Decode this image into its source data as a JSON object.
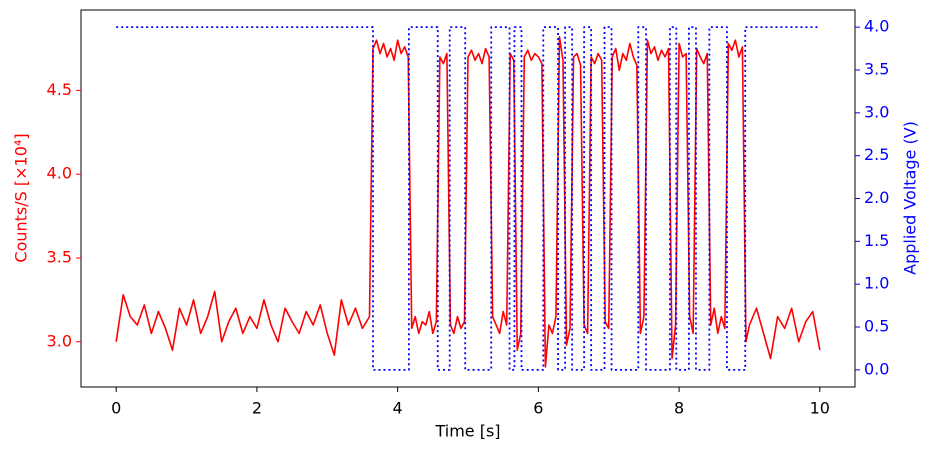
{
  "chart_data": {
    "type": "line",
    "xlabel": "Time [s]",
    "ylabel": "Counts/S [×10⁴]",
    "y2label": "Applied Voltage (V)",
    "xlim": [
      -0.5,
      10.5
    ],
    "xticks": [
      0,
      2,
      4,
      6,
      8,
      10
    ],
    "ylim": [
      2.73,
      4.98
    ],
    "yticks": [
      {
        "value": 3,
        "label": "3.0"
      },
      3.5,
      {
        "value": 4,
        "label": "4.0"
      },
      4.5
    ],
    "y2lim": [
      -0.2,
      4.2
    ],
    "y2ticks": [
      {
        "value": 0,
        "label": "0.0"
      },
      0.5,
      {
        "value": 1,
        "label": "1.0"
      },
      1.5,
      {
        "value": 2,
        "label": "2.0"
      },
      2.5,
      {
        "value": 3,
        "label": "3.0"
      },
      3.5,
      {
        "value": 4,
        "label": "4.0"
      }
    ],
    "ycolor": "#ff0000",
    "y2color": "#0000ff",
    "series": [
      {
        "color": "#ff0000",
        "axis": "y",
        "linestyle": "solid",
        "x": [
          0,
          0.1,
          0.2,
          0.3,
          0.4,
          0.5,
          0.6,
          0.7,
          0.8,
          0.9,
          1.0,
          1.1,
          1.2,
          1.3,
          1.4,
          1.5,
          1.6,
          1.7,
          1.8,
          1.9,
          2.0,
          2.1,
          2.2,
          2.3,
          2.4,
          2.5,
          2.6,
          2.7,
          2.8,
          2.9,
          3.0,
          3.1,
          3.2,
          3.3,
          3.4,
          3.5,
          3.6,
          3.65,
          3.7,
          3.75,
          3.8,
          3.85,
          3.9,
          3.95,
          4.0,
          4.05,
          4.1,
          4.15,
          4.2,
          4.25,
          4.3,
          4.35,
          4.4,
          4.45,
          4.5,
          4.55,
          4.6,
          4.65,
          4.7,
          4.75,
          4.8,
          4.85,
          4.9,
          4.95,
          5.0,
          5.05,
          5.1,
          5.15,
          5.2,
          5.25,
          5.3,
          5.35,
          5.4,
          5.45,
          5.5,
          5.55,
          5.6,
          5.65,
          5.7,
          5.75,
          5.8,
          5.85,
          5.9,
          5.95,
          6.0,
          6.05,
          6.1,
          6.15,
          6.2,
          6.25,
          6.3,
          6.35,
          6.4,
          6.45,
          6.5,
          6.55,
          6.6,
          6.65,
          6.7,
          6.75,
          6.8,
          6.85,
          6.9,
          6.95,
          7.0,
          7.05,
          7.1,
          7.15,
          7.2,
          7.25,
          7.3,
          7.35,
          7.4,
          7.45,
          7.5,
          7.55,
          7.6,
          7.65,
          7.7,
          7.75,
          7.8,
          7.85,
          7.9,
          7.95,
          8.0,
          8.05,
          8.1,
          8.15,
          8.2,
          8.25,
          8.3,
          8.35,
          8.4,
          8.45,
          8.5,
          8.55,
          8.6,
          8.65,
          8.7,
          8.75,
          8.8,
          8.85,
          8.9,
          8.95,
          9.0,
          9.1,
          9.2,
          9.3,
          9.4,
          9.5,
          9.6,
          9.7,
          9.8,
          9.9,
          10.0
        ],
        "values": [
          3.0,
          3.28,
          3.15,
          3.1,
          3.22,
          3.05,
          3.18,
          3.08,
          2.95,
          3.2,
          3.1,
          3.25,
          3.05,
          3.15,
          3.3,
          3.0,
          3.12,
          3.2,
          3.05,
          3.15,
          3.08,
          3.25,
          3.1,
          3.0,
          3.2,
          3.12,
          3.05,
          3.18,
          3.1,
          3.22,
          3.05,
          2.92,
          3.25,
          3.1,
          3.2,
          3.08,
          3.15,
          4.75,
          4.8,
          4.72,
          4.78,
          4.7,
          4.75,
          4.68,
          4.8,
          4.72,
          4.76,
          4.7,
          3.08,
          3.15,
          3.05,
          3.12,
          3.1,
          3.18,
          3.05,
          3.12,
          4.7,
          4.66,
          4.72,
          3.1,
          3.05,
          3.15,
          3.08,
          3.12,
          4.7,
          4.74,
          4.68,
          4.72,
          4.66,
          4.75,
          4.7,
          3.15,
          3.1,
          3.05,
          3.18,
          3.1,
          4.72,
          4.68,
          2.95,
          3.05,
          4.7,
          4.74,
          4.68,
          4.72,
          4.7,
          4.66,
          2.85,
          3.1,
          3.05,
          3.15,
          4.82,
          4.68,
          2.98,
          3.08,
          4.7,
          4.72,
          4.65,
          3.1,
          3.05,
          4.7,
          4.66,
          4.72,
          4.68,
          3.12,
          3.08,
          4.7,
          4.75,
          4.62,
          4.72,
          4.68,
          4.78,
          4.7,
          4.65,
          3.05,
          3.15,
          4.8,
          4.72,
          4.76,
          4.68,
          4.74,
          4.7,
          4.75,
          2.9,
          3.1,
          4.78,
          4.7,
          4.72,
          3.15,
          3.05,
          4.75,
          4.7,
          4.66,
          4.72,
          3.1,
          3.2,
          3.05,
          3.15,
          3.08,
          4.78,
          4.74,
          4.8,
          4.7,
          4.76,
          3.0,
          3.1,
          3.2,
          3.05,
          2.9,
          3.15,
          3.08,
          3.2,
          3.0,
          3.12,
          3.18,
          2.95
        ]
      },
      {
        "color": "#0000ff",
        "axis": "y2",
        "linestyle": "dotted",
        "x": [
          0,
          3.65,
          3.65,
          4.16,
          4.16,
          4.57,
          4.57,
          4.74,
          4.74,
          4.96,
          4.96,
          5.33,
          5.33,
          5.59,
          5.59,
          5.66,
          5.66,
          5.76,
          5.76,
          6.07,
          6.07,
          6.28,
          6.28,
          6.38,
          6.38,
          6.48,
          6.48,
          6.65,
          6.65,
          6.75,
          6.75,
          6.94,
          6.94,
          7.04,
          7.04,
          7.42,
          7.42,
          7.53,
          7.53,
          7.87,
          7.87,
          7.96,
          7.96,
          8.14,
          8.14,
          8.24,
          8.24,
          8.43,
          8.43,
          8.68,
          8.68,
          8.94,
          8.94,
          10.0
        ],
        "values": [
          4,
          4,
          0,
          0,
          4,
          4,
          0,
          0,
          4,
          4,
          0,
          0,
          4,
          4,
          0,
          0,
          4,
          4,
          0,
          0,
          4,
          4,
          0,
          0,
          4,
          4,
          0,
          0,
          4,
          4,
          0,
          0,
          4,
          4,
          0,
          0,
          4,
          4,
          0,
          0,
          4,
          4,
          0,
          0,
          4,
          4,
          0,
          0,
          4,
          4,
          0,
          0,
          4,
          4
        ]
      }
    ]
  }
}
